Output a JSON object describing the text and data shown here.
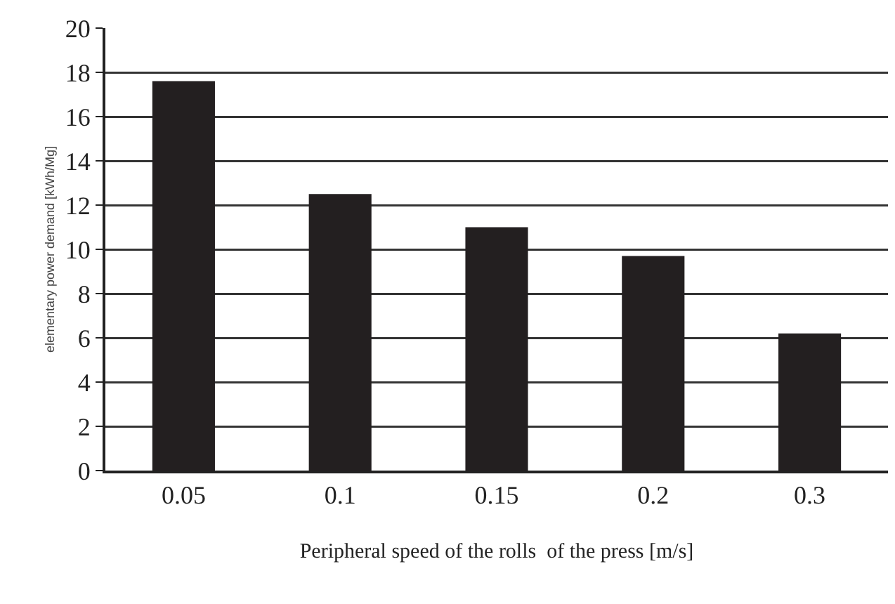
{
  "chart_data": {
    "type": "bar",
    "xlabel": "Peripheral speed of the rolls  of the press [m/s]",
    "ylabel": "elementary power demand [kWh/Mg]",
    "categories": [
      "0.05",
      "0.1",
      "0.15",
      "0.2",
      "0.3"
    ],
    "values": [
      17.6,
      12.5,
      11.0,
      9.7,
      6.2
    ],
    "color": "#231f20",
    "ylim": [
      0,
      20
    ],
    "yticks": [
      0,
      2,
      4,
      6,
      8,
      10,
      12,
      14,
      16,
      18,
      20
    ],
    "grid": "y"
  }
}
